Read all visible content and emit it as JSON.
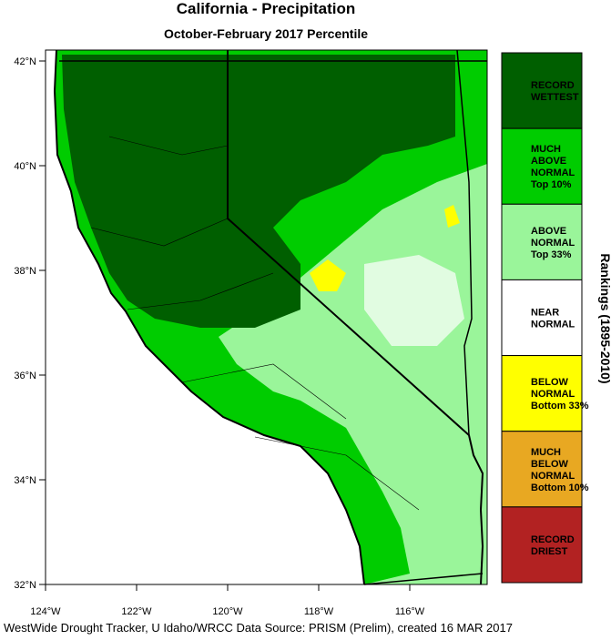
{
  "title": "California - Precipitation",
  "subtitle": "October-February 2017 Percentile",
  "latitude_labels": [
    "42°N",
    "40°N",
    "38°N",
    "36°N",
    "34°N",
    "32°N"
  ],
  "longitude_labels": [
    "124°W",
    "122°W",
    "120°W",
    "118°W",
    "116°W"
  ],
  "legend": {
    "title": "Rankings (1895-2010)",
    "items": [
      {
        "lines": [
          "RECORD",
          "WETTEST"
        ],
        "color": "#005f00"
      },
      {
        "lines": [
          "MUCH",
          "ABOVE",
          "NORMAL",
          "Top 10%"
        ],
        "color": "#00cc00"
      },
      {
        "lines": [
          "ABOVE",
          "NORMAL",
          "Top 33%"
        ],
        "color": "#9af59a"
      },
      {
        "lines": [
          "NEAR",
          "NORMAL"
        ],
        "color": "#ffffff"
      },
      {
        "lines": [
          "BELOW",
          "NORMAL",
          "Bottom 33%"
        ],
        "color": "#ffff00"
      },
      {
        "lines": [
          "MUCH",
          "BELOW",
          "NORMAL",
          "Bottom 10%"
        ],
        "color": "#e8a822"
      },
      {
        "lines": [
          "RECORD",
          "DRIEST"
        ],
        "color": "#b22222"
      }
    ]
  },
  "footer": "WestWide Drought Tracker, U Idaho/WRCC Data Source: PRISM (Prelim), created 16 MAR 2017"
}
